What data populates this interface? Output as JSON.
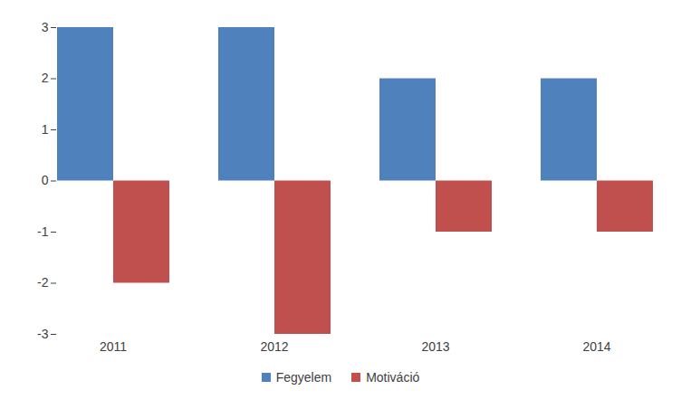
{
  "chart_data": {
    "type": "bar",
    "categories": [
      "2011",
      "2012",
      "2013",
      "2014"
    ],
    "series": [
      {
        "name": "Fegyelem",
        "color": "#4f81bd",
        "values": [
          3,
          3,
          2,
          2
        ]
      },
      {
        "name": "Motiváció",
        "color": "#c0504d",
        "values": [
          -2,
          -3,
          -1,
          -1
        ]
      }
    ],
    "ylim": [
      -3,
      3
    ],
    "yticks": [
      -3,
      -2,
      -1,
      0,
      1,
      2,
      3
    ],
    "grid": false,
    "legend": "bottom"
  }
}
